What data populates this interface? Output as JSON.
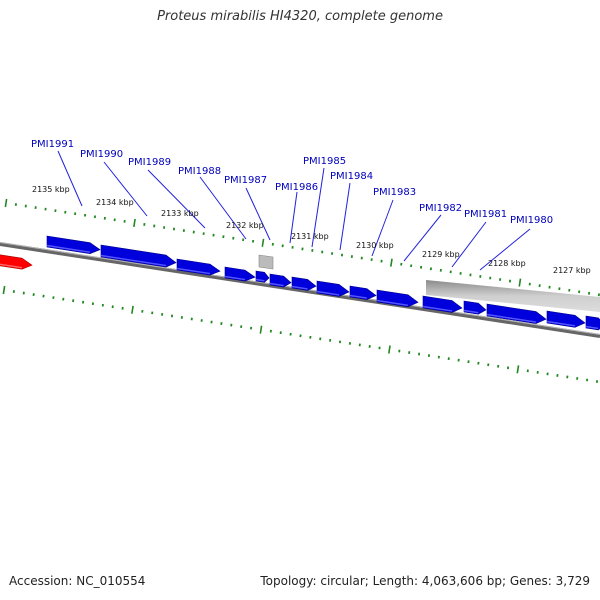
{
  "header": {
    "title": "Proteus mirabilis HI4320, complete genome"
  },
  "footer": {
    "accession": "Accession: NC_010554",
    "info": "Topology: circular; Length: 4,063,606 bp; Genes: 3,729"
  },
  "colors": {
    "forward_gene": "#0000dd",
    "reverse_gene": "#0000ee",
    "highlight_gene": "#ff0000",
    "other_feature": "#aaaaaa",
    "tick": "#228822",
    "backbone": "#777777",
    "label": "#0000bb",
    "callout_line": "#2222dd"
  },
  "scale": {
    "unit": "kbp",
    "labels": [
      "2135 kbp",
      "2134 kbp",
      "2133 kbp",
      "2132 kbp",
      "2131 kbp",
      "2130 kbp",
      "2129 kbp",
      "2128 kbp",
      "2127 kbp"
    ]
  },
  "gene_labels": [
    "PMI1991",
    "PMI1990",
    "PMI1989",
    "PMI1988",
    "PMI1987",
    "PMI1986",
    "PMI1985",
    "PMI1984",
    "PMI1983",
    "PMI1982",
    "PMI1981",
    "PMI1980"
  ]
}
